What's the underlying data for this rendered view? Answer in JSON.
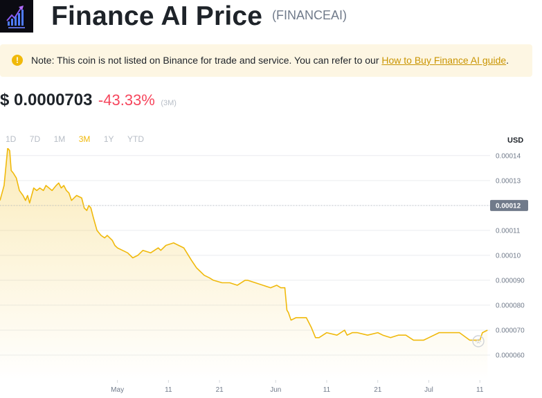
{
  "header": {
    "logo_icon": "finance-ai-logo",
    "title": "Finance AI Price",
    "symbol": "(FINANCEAI)"
  },
  "notice": {
    "icon": "info-icon",
    "icon_glyph": "!",
    "text": "Note: This coin is not listed on Binance for trade and service. You can refer to our ",
    "link_text": "How to Buy Finance AI guide",
    "suffix": "."
  },
  "price": {
    "value": "$ 0.0000703",
    "change": "-43.33%",
    "period": "(3M)"
  },
  "tabs": [
    {
      "label": "1D",
      "active": false
    },
    {
      "label": "7D",
      "active": false
    },
    {
      "label": "1M",
      "active": false
    },
    {
      "label": "3M",
      "active": true
    },
    {
      "label": "1Y",
      "active": false
    },
    {
      "label": "YTD",
      "active": false
    }
  ],
  "chart_data": {
    "type": "line",
    "currency_label": "USD",
    "current_price_label": "0.00012",
    "current_price": 0.00012,
    "y_ticks": [
      "0.00014",
      "0.00013",
      "0.00012",
      "0.00011",
      "0.00010",
      "0.000090",
      "0.000080",
      "0.000070",
      "0.000060"
    ],
    "y_tick_values": [
      0.00014,
      0.00013,
      0.00012,
      0.00011,
      0.0001,
      9e-05,
      8e-05,
      7e-05,
      6e-05
    ],
    "ylim": [
      5e-05,
      0.000143
    ],
    "x_ticks": [
      "May",
      "11",
      "21",
      "Jun",
      "11",
      "21",
      "Jul",
      "11"
    ],
    "x_tick_days": [
      23,
      33,
      43,
      54,
      64,
      74,
      84,
      94
    ],
    "xlim": [
      0,
      96
    ],
    "series": [
      {
        "color": "#f0b90b",
        "x": [
          0,
          0.8,
          1.5,
          1.9,
          2.2,
          2.6,
          3.2,
          3.8,
          4.5,
          5.0,
          5.4,
          5.8,
          6.2,
          6.6,
          7.2,
          7.8,
          8.5,
          9.0,
          9.6,
          10.2,
          11.0,
          11.5,
          12.0,
          12.5,
          13.0,
          13.5,
          14.0,
          15.0,
          16.0,
          16.5,
          17.0,
          17.4,
          17.8,
          18.3,
          19.0,
          19.8,
          20.5,
          21.0,
          21.5,
          22.0,
          22.5,
          23.0,
          24.0,
          25.0,
          26.0,
          27.0,
          28.0,
          29.5,
          31.0,
          31.5,
          32.5,
          34.0,
          35.0,
          36.0,
          37.5,
          38.5,
          39.0,
          40.0,
          41.0,
          41.8,
          43.5,
          45.0,
          46.5,
          48.0,
          48.5,
          50.0,
          53.0,
          54.2,
          55.0,
          55.8,
          56.2,
          56.5,
          57.0,
          58.0,
          60.0,
          61.0,
          61.8,
          62.5,
          64.0,
          66.0,
          67.5,
          68.0,
          69.0,
          70.0,
          72.0,
          74.0,
          75.0,
          76.5,
          78.0,
          79.5,
          81.0,
          83.0,
          84.0,
          86.0,
          87.0,
          88.0,
          90.0,
          92.0,
          93.0,
          94.0,
          94.5,
          95.5
        ],
        "y": [
          0.000122,
          0.000128,
          0.000143,
          0.000142,
          0.000134,
          0.000133,
          0.000131,
          0.000126,
          0.000124,
          0.000122,
          0.000124,
          0.000121,
          0.000124,
          0.000127,
          0.000126,
          0.000127,
          0.000126,
          0.000128,
          0.000127,
          0.000126,
          0.000128,
          0.000129,
          0.000127,
          0.000128,
          0.000126,
          0.000125,
          0.000122,
          0.000124,
          0.000123,
          0.000119,
          0.000118,
          0.00012,
          0.000119,
          0.000115,
          0.00011,
          0.000108,
          0.000107,
          0.000108,
          0.000107,
          0.000106,
          0.000104,
          0.000103,
          0.000102,
          0.000101,
          9.9e-05,
          0.0001,
          0.000102,
          0.000101,
          0.000103,
          0.000102,
          0.000104,
          0.000105,
          0.000104,
          0.000103,
          9.8e-05,
          9.5e-05,
          9.4e-05,
          9.2e-05,
          9.1e-05,
          9e-05,
          8.9e-05,
          8.9e-05,
          8.8e-05,
          9e-05,
          9e-05,
          8.9e-05,
          8.7e-05,
          8.8e-05,
          8.7e-05,
          8.7e-05,
          7.8e-05,
          7.7e-05,
          7.4e-05,
          7.5e-05,
          7.5e-05,
          7.1e-05,
          6.7e-05,
          6.7e-05,
          6.9e-05,
          6.8e-05,
          7e-05,
          6.8e-05,
          6.9e-05,
          6.9e-05,
          6.8e-05,
          6.9e-05,
          6.8e-05,
          6.7e-05,
          6.8e-05,
          6.8e-05,
          6.6e-05,
          6.6e-05,
          6.7e-05,
          6.9e-05,
          6.9e-05,
          6.9e-05,
          6.9e-05,
          6.6e-05,
          6.6e-05,
          6.6e-05,
          6.9e-05,
          7e-05
        ]
      }
    ]
  },
  "watermark_icon": "binance-watermark-icon"
}
